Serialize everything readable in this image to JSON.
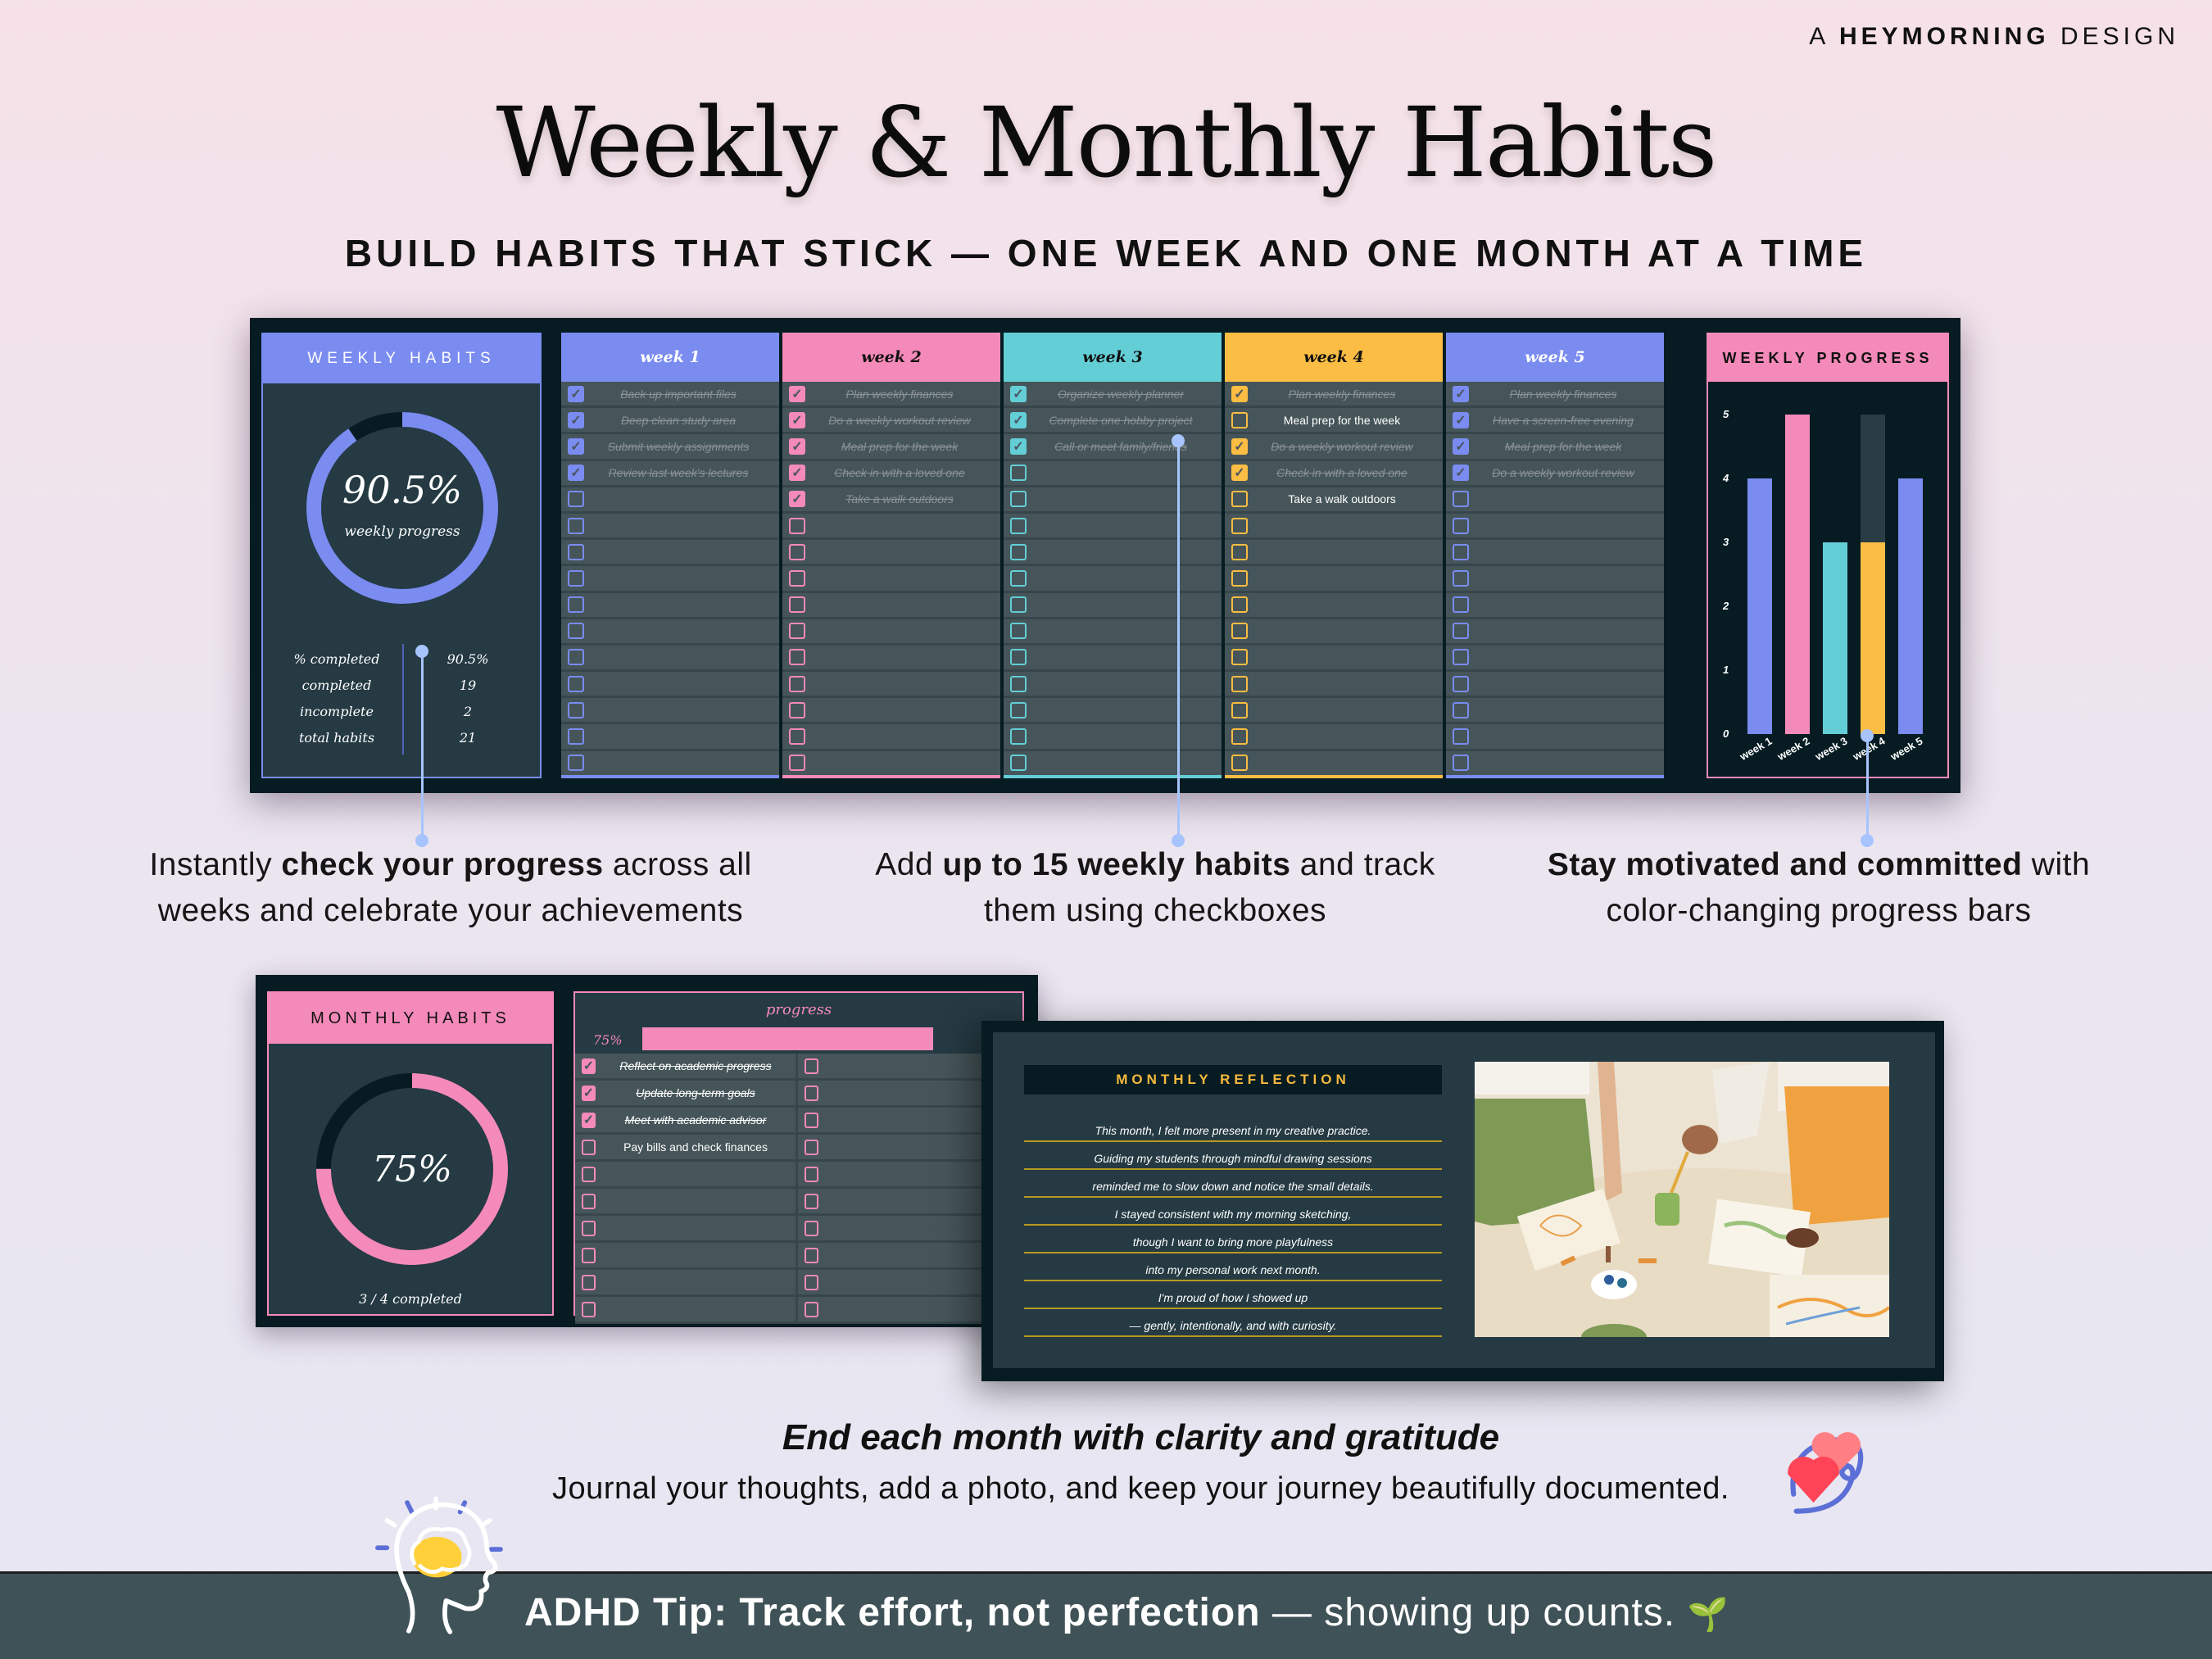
{
  "header": {
    "brand_prefix": "A",
    "brand_name": "HEYMORNING",
    "brand_suffix": "DESIGN",
    "title": "Weekly & Monthly Habits",
    "subtitle": "BUILD HABITS THAT STICK — ONE WEEK AND ONE MONTH AT A TIME"
  },
  "weekly_habits": {
    "heading": "WEEKLY HABITS",
    "progress_percent": "90.5%",
    "progress_value": 90.5,
    "progress_label": "weekly progress",
    "accent_color": "#7a8cf0",
    "stats": [
      {
        "label": "% completed",
        "value": "90.5%"
      },
      {
        "label": "completed",
        "value": "19"
      },
      {
        "label": "incomplete",
        "value": "2"
      },
      {
        "label": "total habits",
        "value": "21"
      }
    ]
  },
  "weeks": [
    {
      "label": "week 1",
      "color": "#7a8cf0",
      "head_text_color": "#ffffff",
      "habits": [
        {
          "text": "Back up important files",
          "done": true
        },
        {
          "text": "Deep clean study area",
          "done": true
        },
        {
          "text": "Submit weekly assignments",
          "done": true
        },
        {
          "text": "Review last week's lectures",
          "done": true
        }
      ]
    },
    {
      "label": "week 2",
      "color": "#f48ab9",
      "head_text_color": "#111111",
      "habits": [
        {
          "text": "Plan weekly finances",
          "done": true
        },
        {
          "text": "Do a weekly workout review",
          "done": true
        },
        {
          "text": "Meal prep for the week",
          "done": true
        },
        {
          "text": "Check in with a loved one",
          "done": true
        },
        {
          "text": "Take a walk outdoors",
          "done": true
        }
      ]
    },
    {
      "label": "week 3",
      "color": "#63ced6",
      "head_text_color": "#111111",
      "habits": [
        {
          "text": "Organize weekly planner",
          "done": true
        },
        {
          "text": "Complete one hobby project",
          "done": true
        },
        {
          "text": "Call or meet family/friends",
          "done": true
        }
      ]
    },
    {
      "label": "week 4",
      "color": "#fbbd43",
      "head_text_color": "#111111",
      "habits": [
        {
          "text": "Plan weekly finances",
          "done": true
        },
        {
          "text": "Meal prep for the week",
          "done": false
        },
        {
          "text": "Do a weekly workout review",
          "done": true
        },
        {
          "text": "Check in with a loved one",
          "done": true
        },
        {
          "text": "Take a walk outdoors",
          "done": false
        }
      ]
    },
    {
      "label": "week 5",
      "color": "#7a8cf0",
      "head_text_color": "#ffffff",
      "habits": [
        {
          "text": "Plan weekly finances",
          "done": true
        },
        {
          "text": "Have a screen-free evening",
          "done": true
        },
        {
          "text": "Meal prep for the week",
          "done": true
        },
        {
          "text": "Do a weekly workout review",
          "done": true
        }
      ]
    }
  ],
  "weekly_progress": {
    "heading": "WEEKLY PROGRESS"
  },
  "chart_data": {
    "type": "bar",
    "title": "WEEKLY PROGRESS",
    "categories": [
      "week 1",
      "week 2",
      "week 3",
      "week 4",
      "week 5"
    ],
    "series": [
      {
        "name": "completed",
        "values": [
          4,
          5,
          3,
          3,
          4
        ],
        "colors": [
          "#7a8cf0",
          "#f48ab9",
          "#63ced6",
          "#fbbd43",
          "#7a8cf0"
        ]
      },
      {
        "name": "total",
        "values": [
          4,
          5,
          3,
          5,
          4
        ]
      }
    ],
    "yticks": [
      0,
      1,
      2,
      3,
      4,
      5
    ],
    "ylim": [
      0,
      5
    ],
    "xlabel": "",
    "ylabel": "",
    "grid": false
  },
  "captions": {
    "c1_pre": "Instantly ",
    "c1_bold": "check your progress",
    "c1_post": " across all",
    "c1_line2": "weeks and celebrate your achievements",
    "c2_pre": "Add ",
    "c2_bold": "up to 15 weekly habits",
    "c2_post": " and track",
    "c2_line2": "them using checkboxes",
    "c3_bold": "Stay motivated and committed",
    "c3_post": " with",
    "c3_line2": "color-changing progress bars"
  },
  "monthly_habits": {
    "heading": "MONTHLY HABITS",
    "progress_percent": "75%",
    "progress_value": 75,
    "completed_label": "3 / 4 completed",
    "progress_caption": "progress",
    "progress_bar_pct": "75%",
    "accent_color": "#f48ab9",
    "habits": [
      {
        "text": "Reflect on academic progress",
        "done": true
      },
      {
        "text": "Update long-term goals",
        "done": true
      },
      {
        "text": "Meet with academic advisor",
        "done": true
      },
      {
        "text": "Pay bills and check finances",
        "done": false
      }
    ]
  },
  "monthly_reflection": {
    "heading": "MONTHLY REFLECTION",
    "lines": [
      "This month, I felt more present in my creative practice.",
      "Guiding my students through mindful drawing sessions",
      "reminded me to slow down and notice the small details.",
      "I stayed consistent with my morning sketching,",
      "though I want to bring more playfulness",
      "into my personal work next month.",
      "I'm proud of how I showed up",
      "— gently, intentionally, and with curiosity."
    ],
    "accent_color": "#f7b93e"
  },
  "tagline": {
    "title": "End each month with clarity and gratitude",
    "subtitle": "Journal your thoughts, add a photo, and keep your journey beautifully documented."
  },
  "footer": {
    "bold": "ADHD Tip: Track effort, not perfection",
    "rest": " — showing up counts.",
    "sprout_icon": "🌱"
  }
}
